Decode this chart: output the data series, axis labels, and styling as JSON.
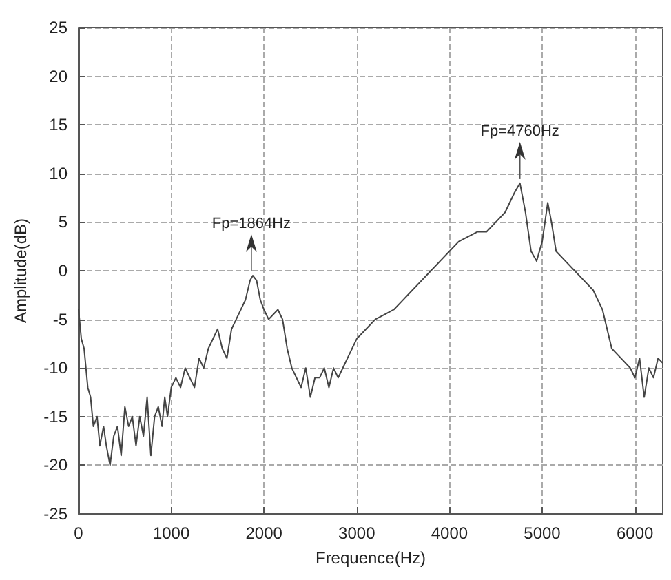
{
  "chart_data": {
    "type": "line",
    "xlabel": "Frequence(Hz)",
    "ylabel": "Amplitude(dB)",
    "x": [
      0,
      30,
      60,
      100,
      130,
      160,
      200,
      230,
      270,
      300,
      340,
      380,
      420,
      460,
      500,
      540,
      580,
      620,
      660,
      700,
      740,
      780,
      820,
      860,
      900,
      930,
      960,
      1000,
      1050,
      1100,
      1150,
      1200,
      1250,
      1300,
      1350,
      1400,
      1450,
      1500,
      1550,
      1600,
      1650,
      1700,
      1750,
      1800,
      1850,
      1880,
      1920,
      1960,
      2000,
      2050,
      2100,
      2150,
      2200,
      2250,
      2300,
      2350,
      2400,
      2450,
      2500,
      2550,
      2600,
      2650,
      2700,
      2750,
      2800,
      2850,
      2900,
      2950,
      3000,
      3100,
      3200,
      3300,
      3400,
      3500,
      3600,
      3700,
      3800,
      3900,
      4000,
      4100,
      4200,
      4300,
      4400,
      4500,
      4600,
      4700,
      4760,
      4820,
      4880,
      4940,
      5000,
      5060,
      5100,
      5150,
      5250,
      5350,
      5450,
      5550,
      5650,
      5750,
      5850,
      5950,
      6000,
      6050,
      6100,
      6150,
      6200,
      6250,
      6300
    ],
    "series": [
      {
        "color": "#444444",
        "values": [
          -4,
          -7,
          -8,
          -12,
          -13,
          -16,
          -15,
          -18,
          -16,
          -18,
          -20,
          -17,
          -16,
          -19,
          -14,
          -16,
          -15,
          -18,
          -15,
          -17,
          -13,
          -19,
          -15,
          -14,
          -16,
          -13,
          -15,
          -12,
          -11,
          -12,
          -10,
          -11,
          -12,
          -9,
          -10,
          -8,
          -7,
          -6,
          -8,
          -9,
          -6,
          -5,
          -4,
          -3,
          -1,
          -0.5,
          -1,
          -3,
          -4,
          -5,
          -4.5,
          -4,
          -5,
          -8,
          -10,
          -11,
          -12,
          -10,
          -13,
          -11,
          -11,
          -10,
          -12,
          -10,
          -11,
          -10,
          -9,
          -8,
          -7,
          -6,
          -5,
          -4.5,
          -4,
          -3,
          -2,
          -1,
          0,
          1,
          2,
          3,
          3.5,
          4,
          4,
          5,
          6,
          8,
          9,
          6,
          2,
          1,
          3,
          7,
          5,
          2,
          1,
          0,
          -1,
          -2,
          -4,
          -8,
          -9,
          -10,
          -11,
          -9,
          -13,
          -10,
          -11,
          -9,
          -9.5
        ]
      }
    ],
    "annotations": [
      {
        "text": "Fp=1864Hz",
        "x": 1864,
        "y": -0.5
      },
      {
        "text": "Fp=4760Hz",
        "x": 4760,
        "y": 9
      }
    ],
    "xlim": [
      0,
      6300
    ],
    "xticks": [
      0,
      1000,
      2000,
      3000,
      4000,
      5000,
      6000
    ],
    "ylim": [
      -25,
      25
    ],
    "yticks": [
      -25,
      -20,
      -15,
      -10,
      -5,
      0,
      5,
      10,
      15,
      20,
      25
    ],
    "grid": true,
    "marker": "none",
    "line_style": "solid"
  }
}
